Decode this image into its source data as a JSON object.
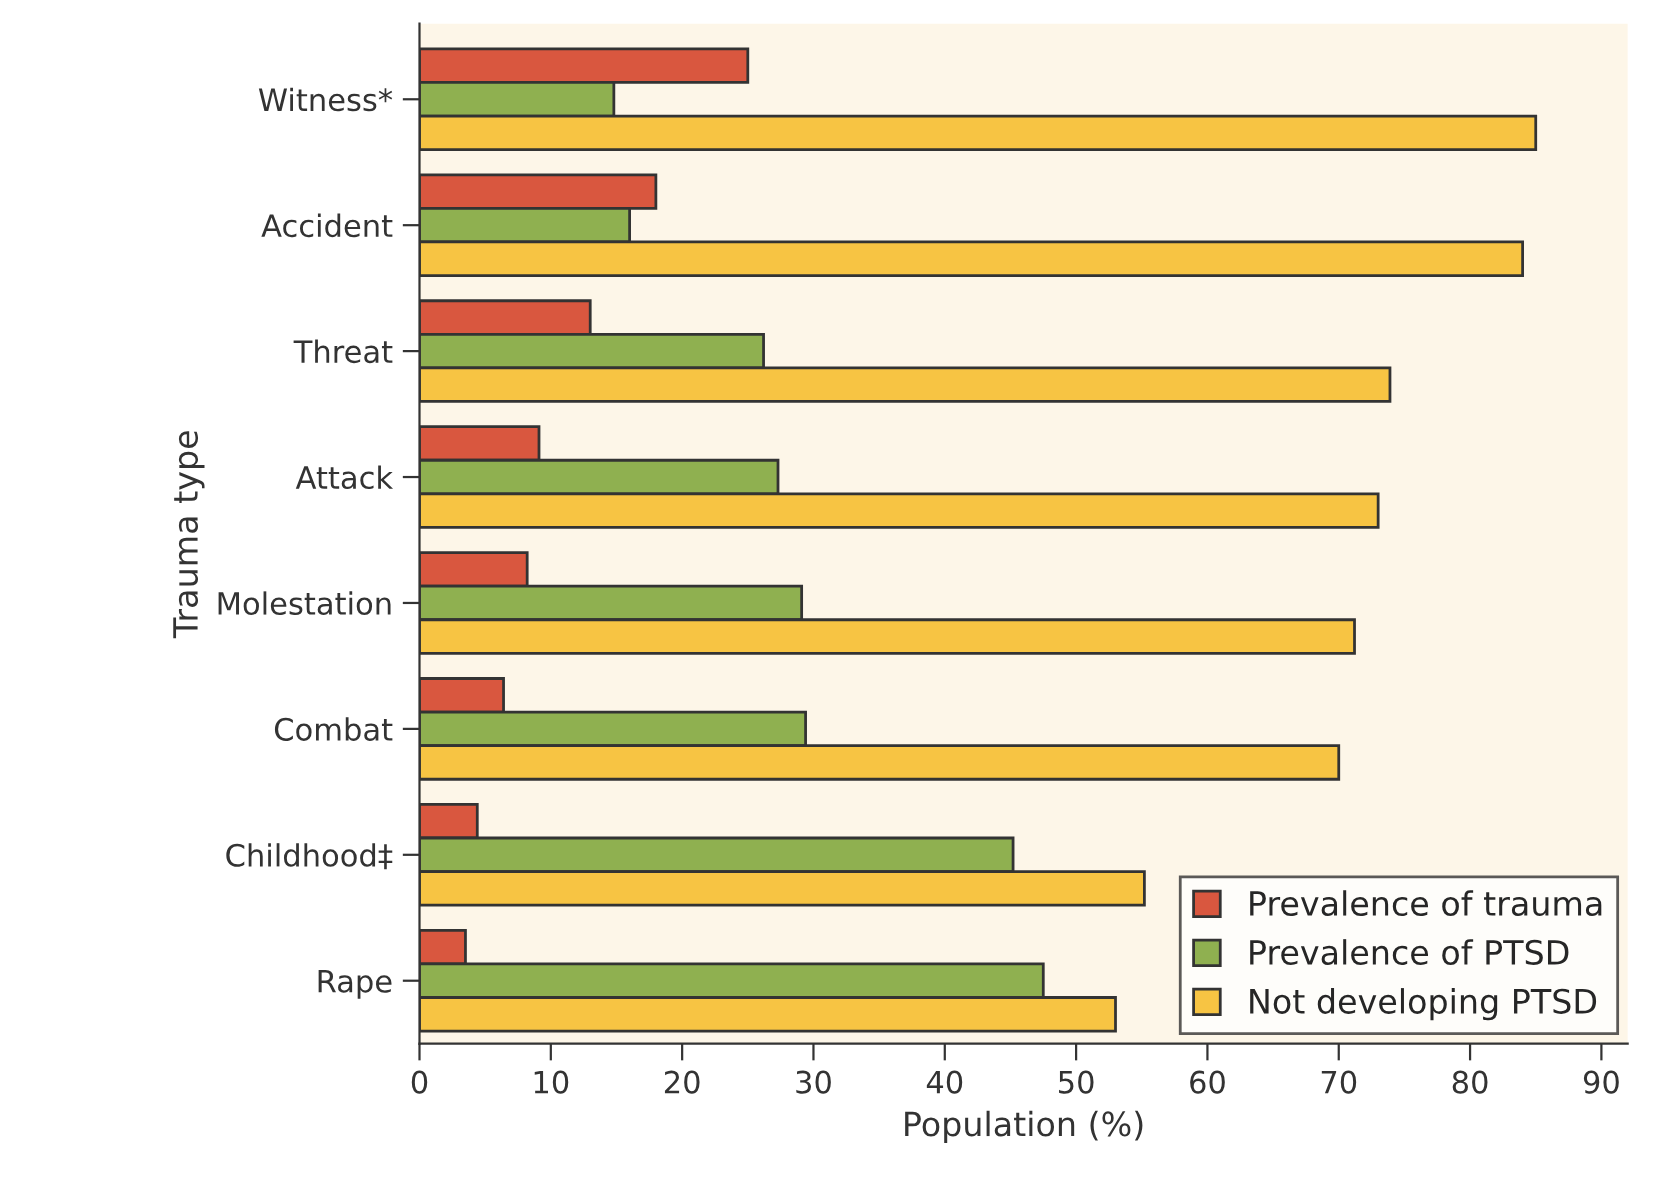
{
  "chart_data": {
    "type": "bar",
    "orientation": "horizontal",
    "xlabel": "Population (%)",
    "ylabel": "Trauma type",
    "categories": [
      "Witness*",
      "Accident",
      "Threat",
      "Attack",
      "Molestation",
      "Combat",
      "Childhood‡",
      "Rape"
    ],
    "series": [
      {
        "name": "Prevalence of trauma",
        "color": "#d9573f",
        "values": [
          25.0,
          18.0,
          13.0,
          9.1,
          8.2,
          6.4,
          4.4,
          3.5
        ]
      },
      {
        "name": "Prevalence of PTSD",
        "color": "#8fb050",
        "values": [
          14.8,
          16.0,
          26.2,
          27.3,
          29.1,
          29.4,
          45.2,
          47.5
        ]
      },
      {
        "name": "Not developing PTSD",
        "color": "#f7c443",
        "values": [
          85.0,
          84.0,
          73.9,
          73.0,
          71.2,
          70.0,
          55.2,
          53.0
        ]
      }
    ],
    "xlim": [
      0,
      92
    ],
    "xticks": [
      0,
      10,
      20,
      30,
      40,
      50,
      60,
      70,
      80,
      90
    ],
    "grid": false,
    "legend": "bottom right"
  }
}
